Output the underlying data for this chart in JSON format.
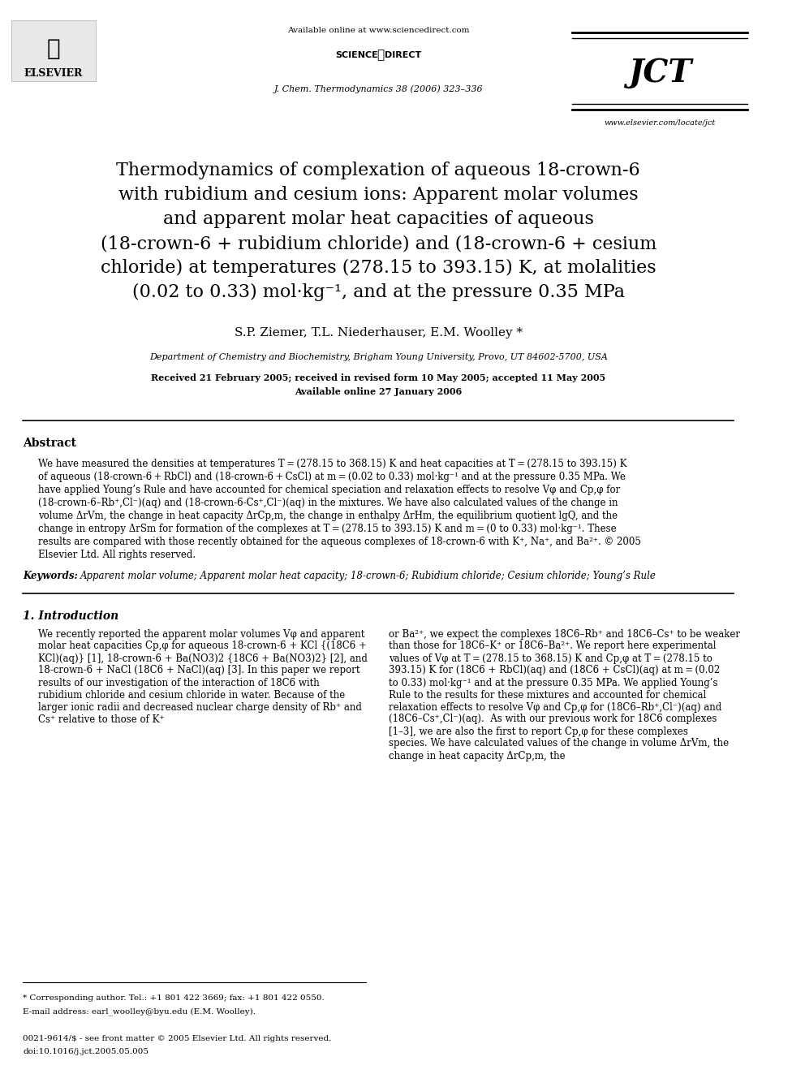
{
  "bg_color": "#ffffff",
  "header": {
    "available_online": "Available online at www.sciencedirect.com",
    "journal": "J. Chem. Thermodynamics 38 (2006) 323–336",
    "website": "www.elsevier.com/locate/jct",
    "science_direct": "SCIENCE ⓓ DIRECT·"
  },
  "title_lines": [
    "Thermodynamics of complexation of aqueous 18-crown-6",
    "with rubidium and cesium ions: Apparent molar volumes",
    "and apparent molar heat capacities of aqueous",
    "(18-crown-6 + rubidium chloride) and (18-crown-6 + cesium",
    "chloride) at temperatures (278.15 to 393.15) K, at molalities",
    "(0.02 to 0.33) mol·kg⁻¹, and at the pressure 0.35 MPa"
  ],
  "authors": "S.P. Ziemer, T.L. Niederhauser, E.M. Woolley *",
  "affiliation": "Department of Chemistry and Biochemistry, Brigham Young University, Provo, UT 84602-5700, USA",
  "received": "Received 21 February 2005; received in revised form 10 May 2005; accepted 11 May 2005",
  "available_online2": "Available online 27 January 2006",
  "abstract_title": "Abstract",
  "abstract_text": "We have measured the densities at temperatures T = (278.15 to 368.15) K and heat capacities at T = (278.15 to 393.15) K of aqueous (18-crown-6 + RbCl) and (18-crown-6 + CsCl) at m = (0.02 to 0.33) mol·kg⁻¹ and at the pressure 0.35 MPa. We have applied Young’s Rule and have accounted for chemical speciation and relaxation effects to resolve Vφ and Cp,φ for (18-crown-6–Rb⁺,Cl⁻)(aq) and (18-crown-6-Cs⁺,Cl⁻)(aq) in the mixtures. We have also calculated values of the change in volume ΔrVm, the change in heat capacity ΔrCp,m, the change in enthalpy ΔrHm, the equilibrium quotient lgQ, and the change in entropy ΔrSm for formation of the complexes at T = (278.15 to 393.15) K and m = (0 to 0.33) mol·kg⁻¹. These results are compared with those recently obtained for the aqueous complexes of 18-crown-6 with K⁺, Na⁺, and Ba²⁺.\n© 2005 Elsevier Ltd. All rights reserved.",
  "keywords_label": "Keywords:",
  "keywords_text": "Apparent molar volume; Apparent molar heat capacity; 18-crown-6; Rubidium chloride; Cesium chloride; Young’s Rule",
  "intro_title": "1. Introduction",
  "intro_left": "We recently reported the apparent molar volumes Vφ and apparent molar heat capacities Cp,φ for aqueous 18-crown-6 + KCl {(18C6 + KCl)(aq)} [1], 18-crown-6 + Ba(NO3)2 {18C6 + Ba(NO3)2} [2], and 18-crown-6 + NaCl (18C6 + NaCl)(aq) [3]. In this paper we report results of our investigation of the interaction of 18C6 with rubidium chloride and cesium chloride in water. Because of the larger ionic radii and decreased nuclear charge density of Rb⁺ and Cs⁺ relative to those of K⁺",
  "intro_right": "or Ba²⁺, we expect the complexes 18C6–Rb⁺ and 18C6–Cs⁺ to be weaker than those for 18C6–K⁺ or 18C6–Ba²⁺. We report here experimental values of Vφ at T = (278.15 to 368.15) K and Cp,φ at T = (278.15 to 393.15) K for (18C6 + RbCl)(aq) and (18C6 + CsCl)(aq) at m = (0.02 to 0.33) mol·kg⁻¹ and at the pressure 0.35 MPa. We applied Young’s Rule to the results for these mixtures and accounted for chemical relaxation effects to resolve Vφ and Cp,φ for (18C6–Rb⁺,Cl⁻)(aq) and (18C6–Cs⁺,Cl⁻)(aq).\n\nAs with our previous work for 18C6 complexes [1–3], we are also the first to report Cp,φ for these complexes species. We have calculated values of the change in volume ΔrVm, the change in heat capacity ΔrCp,m, the",
  "footnote_left": "* Corresponding author. Tel.: +1 801 422 3669; fax: +1 801 422 0550.\nE-mail address: earl_woolley@byu.edu (E.M. Woolley).",
  "footnote_bottom": "0021-9614/$ - see front matter © 2005 Elsevier Ltd. All rights reserved.\ndoi:10.1016/j.jct.2005.05.005"
}
